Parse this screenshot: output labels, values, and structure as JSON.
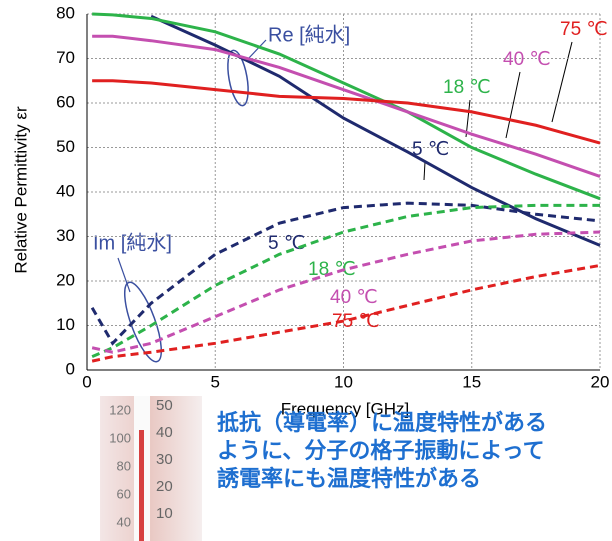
{
  "chart_data": {
    "type": "line",
    "y_label": "Relative Permittivity εr",
    "x_label": "Frequency [GHz]",
    "x": [
      0.2,
      1,
      2.5,
      5,
      7.5,
      10,
      12.5,
      15,
      17.5,
      20
    ],
    "xlim": [
      0,
      20
    ],
    "xticks": [
      0,
      5,
      10,
      15,
      20
    ],
    "ylim": [
      0,
      80
    ],
    "yticks": [
      0,
      10,
      20,
      30,
      40,
      50,
      60,
      70,
      80
    ],
    "grid": true,
    "annotations": [
      "Re [純水]",
      "Im [純水]"
    ],
    "series": [
      {
        "name": "5 ℃",
        "color": "#1f2a6e",
        "dash": false,
        "values": [
          null,
          null,
          79.5,
          73,
          66,
          56.6,
          49,
          41,
          34,
          28
        ]
      },
      {
        "name": "18 ℃",
        "color": "#2db34a",
        "dash": false,
        "values": [
          80,
          79.8,
          79,
          76,
          71,
          64.5,
          58,
          50,
          44,
          38.5
        ]
      },
      {
        "name": "40 ℃",
        "color": "#c44fb0",
        "dash": false,
        "values": [
          75,
          75,
          74,
          72,
          68,
          63,
          58,
          53,
          48.5,
          43.5
        ]
      },
      {
        "name": "75 ℃",
        "color": "#e02020",
        "dash": false,
        "values": [
          65,
          65,
          64.5,
          63,
          61.5,
          61,
          60,
          58,
          55,
          51
        ]
      },
      {
        "name": "5 ℃",
        "color": "#1f2a6e",
        "dash": true,
        "values": [
          14,
          6,
          15,
          26,
          33,
          36.5,
          37.5,
          37,
          35,
          33.5
        ]
      },
      {
        "name": "18 ℃",
        "color": "#2db34a",
        "dash": true,
        "values": [
          3,
          5,
          10,
          19,
          26,
          31,
          34.5,
          36.5,
          37,
          37
        ]
      },
      {
        "name": "40 ℃",
        "color": "#c44fb0",
        "dash": true,
        "values": [
          5,
          4,
          6,
          12,
          18,
          22.5,
          26,
          29,
          30.5,
          31
        ]
      },
      {
        "name": "75 ℃",
        "color": "#e02020",
        "dash": true,
        "values": [
          2,
          3,
          4,
          6,
          8.5,
          11,
          14.5,
          18,
          21,
          23.5
        ]
      }
    ]
  },
  "thermometer": {
    "left_scale": [
      "120",
      "100",
      "80",
      "60",
      "40"
    ],
    "right_scale": [
      "50",
      "40",
      "30",
      "20",
      "10"
    ]
  },
  "caption": [
    "抵抗（導電率）に温度特性がある",
    "ように、分子の格子振動によって",
    "誘電率にも温度特性がある"
  ]
}
